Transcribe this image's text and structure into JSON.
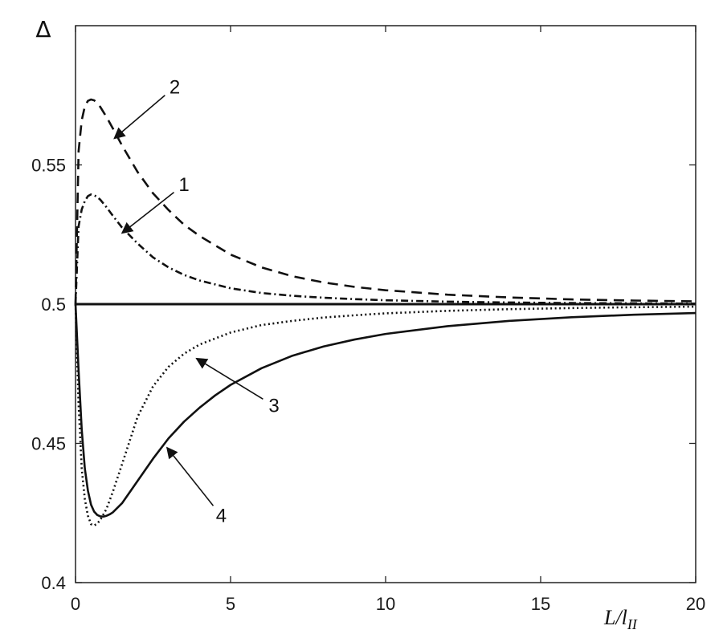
{
  "chart_data": {
    "type": "line",
    "xlabel": "L/l",
    "xlabel_sub": "II",
    "ylabel": "Δ",
    "xlim": [
      0,
      20
    ],
    "ylim": [
      0.4,
      0.6
    ],
    "xticks": [
      0,
      5,
      10,
      15,
      20
    ],
    "yticks": [
      0.4,
      0.45,
      0.5,
      0.55
    ],
    "ytick_labels": [
      "0.4",
      "0.45",
      "0.5",
      "0.55"
    ],
    "grid": false,
    "series": [
      {
        "name": "1",
        "style": "dashdot",
        "x": [
          0,
          0.1,
          0.2,
          0.3,
          0.4,
          0.5,
          0.6,
          0.7,
          0.8,
          1,
          1.2,
          1.5,
          2,
          2.5,
          3,
          3.5,
          4,
          5,
          6,
          7,
          8,
          9,
          10,
          12,
          14,
          16,
          18,
          20
        ],
        "y": [
          0.5,
          0.528,
          0.534,
          0.537,
          0.5388,
          0.5394,
          0.5391,
          0.5385,
          0.5375,
          0.5348,
          0.5318,
          0.5275,
          0.5218,
          0.5168,
          0.5132,
          0.5105,
          0.5085,
          0.5057,
          0.504,
          0.503,
          0.5023,
          0.5018,
          0.5014,
          0.5009,
          0.5006,
          0.5004,
          0.5003,
          0.5002
        ]
      },
      {
        "name": "2",
        "style": "dashed",
        "x": [
          0,
          0.1,
          0.2,
          0.3,
          0.4,
          0.5,
          0.6,
          0.7,
          0.8,
          1,
          1.2,
          1.5,
          2,
          2.5,
          3,
          3.5,
          4,
          5,
          6,
          7,
          8,
          9,
          10,
          12,
          14,
          16,
          18,
          20
        ],
        "y": [
          0.5,
          0.555,
          0.566,
          0.571,
          0.573,
          0.5735,
          0.5732,
          0.5722,
          0.5708,
          0.5672,
          0.5632,
          0.557,
          0.5475,
          0.5398,
          0.5338,
          0.5285,
          0.5245,
          0.5178,
          0.5132,
          0.51,
          0.5078,
          0.5062,
          0.505,
          0.5034,
          0.5024,
          0.5017,
          0.5013,
          0.501
        ]
      },
      {
        "name": "3",
        "style": "dotted",
        "x": [
          0,
          0.1,
          0.2,
          0.3,
          0.4,
          0.5,
          0.6,
          0.7,
          0.8,
          1,
          1.2,
          1.5,
          2,
          2.5,
          3,
          3.5,
          4,
          5,
          6,
          7,
          8,
          9,
          10,
          12,
          14,
          16,
          18,
          20
        ],
        "y": [
          0.5,
          0.464,
          0.441,
          0.43,
          0.424,
          0.421,
          0.4205,
          0.4212,
          0.4225,
          0.4265,
          0.4325,
          0.4425,
          0.4595,
          0.4705,
          0.4775,
          0.4822,
          0.4855,
          0.4898,
          0.4925,
          0.494,
          0.4952,
          0.496,
          0.4967,
          0.4976,
          0.4982,
          0.4986,
          0.4989,
          0.4991
        ]
      },
      {
        "name": "4",
        "style": "solid",
        "x": [
          0,
          0.1,
          0.2,
          0.3,
          0.4,
          0.5,
          0.6,
          0.7,
          0.8,
          0.9,
          1,
          1.1,
          1.2,
          1.5,
          2,
          2.5,
          3,
          3.5,
          4,
          4.5,
          5,
          6,
          7,
          8,
          9,
          10,
          12,
          14,
          16,
          18,
          20
        ],
        "y": [
          0.5,
          0.476,
          0.455,
          0.441,
          0.433,
          0.428,
          0.4255,
          0.4243,
          0.4238,
          0.4237,
          0.424,
          0.4245,
          0.4252,
          0.4285,
          0.4365,
          0.4445,
          0.4518,
          0.4578,
          0.4628,
          0.4672,
          0.471,
          0.477,
          0.4815,
          0.4848,
          0.4873,
          0.4893,
          0.4921,
          0.494,
          0.4953,
          0.4962,
          0.4968
        ]
      },
      {
        "name": "",
        "style": "solid-thick",
        "x": [
          0,
          20
        ],
        "y": [
          0.5,
          0.5
        ]
      }
    ],
    "annotations": [
      {
        "label": "2",
        "text_at": [
          3.2,
          0.578
        ],
        "arrow_to": [
          1.25,
          0.5595
        ]
      },
      {
        "label": "1",
        "text_at": [
          3.5,
          0.543
        ],
        "arrow_to": [
          1.5,
          0.5255
        ]
      },
      {
        "label": "3",
        "text_at": [
          6.4,
          0.4635
        ],
        "arrow_to": [
          3.9,
          0.4805
        ]
      },
      {
        "label": "4",
        "text_at": [
          4.7,
          0.424
        ],
        "arrow_to": [
          2.95,
          0.4485
        ]
      }
    ]
  }
}
